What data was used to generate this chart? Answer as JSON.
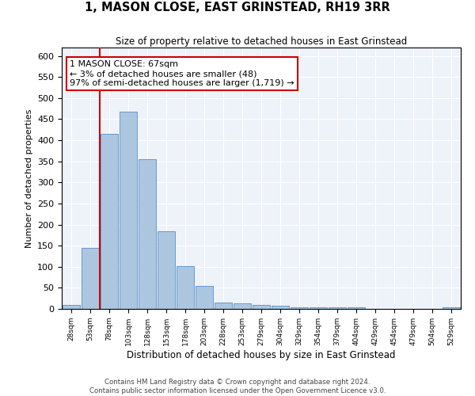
{
  "title": "1, MASON CLOSE, EAST GRINSTEAD, RH19 3RR",
  "subtitle": "Size of property relative to detached houses in East Grinstead",
  "xlabel": "Distribution of detached houses by size in East Grinstead",
  "ylabel": "Number of detached properties",
  "bin_labels": [
    "28sqm",
    "53sqm",
    "78sqm",
    "103sqm",
    "128sqm",
    "153sqm",
    "178sqm",
    "203sqm",
    "228sqm",
    "253sqm",
    "279sqm",
    "304sqm",
    "329sqm",
    "354sqm",
    "379sqm",
    "404sqm",
    "429sqm",
    "454sqm",
    "479sqm",
    "504sqm",
    "529sqm"
  ],
  "bar_values": [
    10,
    145,
    415,
    467,
    355,
    185,
    102,
    54,
    15,
    13,
    10,
    8,
    4,
    4,
    3,
    3,
    0,
    0,
    0,
    0,
    4
  ],
  "bar_color": "#adc6e0",
  "bar_edge_color": "#6699cc",
  "property_line_x": 1.5,
  "annotation_text": "1 MASON CLOSE: 67sqm\n← 3% of detached houses are smaller (48)\n97% of semi-detached houses are larger (1,719) →",
  "annotation_box_color": "#ffffff",
  "annotation_box_edge": "#cc0000",
  "vline_color": "#cc0000",
  "ylim": [
    0,
    620
  ],
  "yticks": [
    0,
    50,
    100,
    150,
    200,
    250,
    300,
    350,
    400,
    450,
    500,
    550,
    600
  ],
  "background_color": "#eef2f9",
  "footer_line1": "Contains HM Land Registry data © Crown copyright and database right 2024.",
  "footer_line2": "Contains public sector information licensed under the Open Government Licence v3.0."
}
